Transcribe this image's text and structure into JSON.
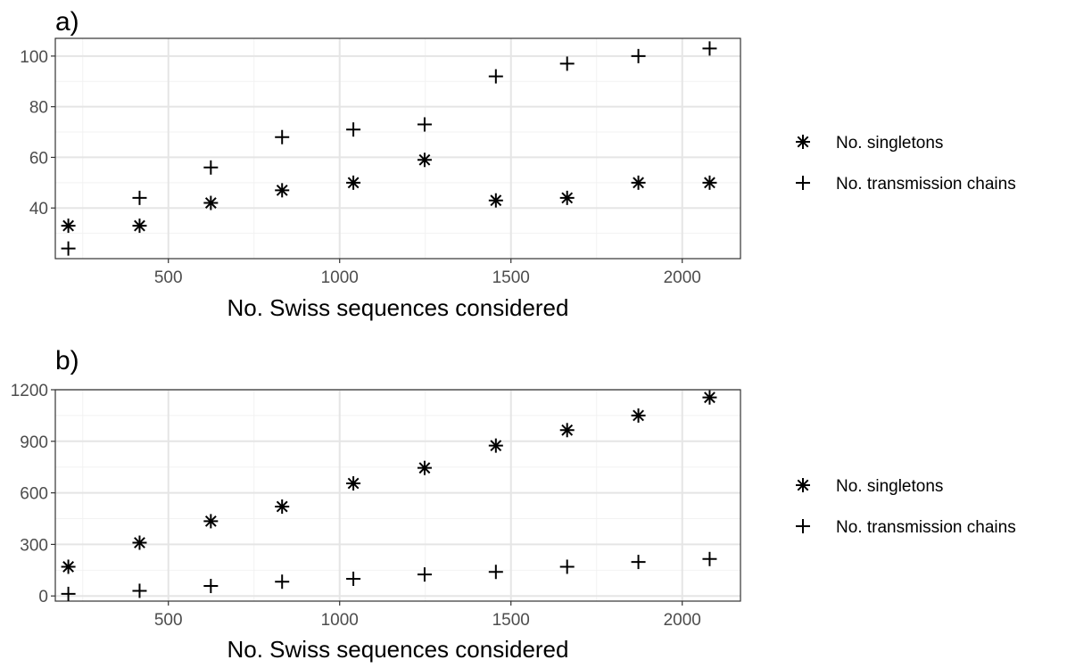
{
  "chart_data": [
    {
      "type": "scatter",
      "panel_label": "a)",
      "xlabel": "No. Swiss sequences considered",
      "ylabel": "",
      "xlim": [
        170,
        2170
      ],
      "ylim": [
        20,
        107
      ],
      "xticks": [
        500,
        1000,
        1500,
        2000
      ],
      "yticks": [
        40,
        60,
        80,
        100
      ],
      "grid": true,
      "legend_position": "right",
      "series": [
        {
          "name": "No. singletons",
          "marker": "asterisk",
          "x": [
            208,
            416,
            624,
            832,
            1040,
            1248,
            1456,
            1664,
            1872,
            2080
          ],
          "y": [
            33,
            33,
            42,
            47,
            50,
            59,
            43,
            44,
            50,
            50
          ]
        },
        {
          "name": "No. transmission chains",
          "marker": "plus",
          "x": [
            208,
            416,
            624,
            832,
            1040,
            1248,
            1456,
            1664,
            1872,
            2080
          ],
          "y": [
            24,
            44,
            56,
            68,
            71,
            73,
            92,
            97,
            100,
            103
          ]
        }
      ]
    },
    {
      "type": "scatter",
      "panel_label": "b)",
      "xlabel": "No. Swiss sequences considered",
      "ylabel": "",
      "xlim": [
        170,
        2170
      ],
      "ylim": [
        -30,
        1200
      ],
      "xticks": [
        500,
        1000,
        1500,
        2000
      ],
      "yticks": [
        0,
        300,
        600,
        900,
        1200
      ],
      "grid": true,
      "legend_position": "right",
      "series": [
        {
          "name": "No. singletons",
          "marker": "asterisk",
          "x": [
            208,
            416,
            624,
            832,
            1040,
            1248,
            1456,
            1664,
            1872,
            2080
          ],
          "y": [
            170,
            310,
            435,
            520,
            655,
            745,
            875,
            965,
            1050,
            1155
          ]
        },
        {
          "name": "No. transmission chains",
          "marker": "plus",
          "x": [
            208,
            416,
            624,
            832,
            1040,
            1248,
            1456,
            1664,
            1872,
            2080
          ],
          "y": [
            12,
            30,
            58,
            83,
            100,
            125,
            140,
            170,
            198,
            215
          ]
        }
      ]
    }
  ]
}
